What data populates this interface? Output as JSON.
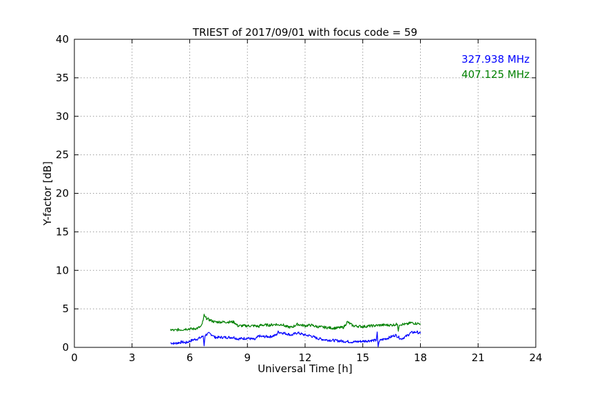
{
  "chart_data": {
    "type": "line",
    "title": "TRIEST of 2017/09/01 with focus code = 59",
    "xlabel": "Universal Time [h]",
    "ylabel": "Y-factor [dB]",
    "xlim": [
      0,
      24
    ],
    "ylim": [
      0,
      40
    ],
    "xticks": [
      0,
      3,
      6,
      9,
      12,
      15,
      18,
      21,
      24
    ],
    "yticks": [
      0,
      5,
      10,
      15,
      20,
      25,
      30,
      35,
      40
    ],
    "grid": true,
    "legend_position": "top-right",
    "series": [
      {
        "name": "327.938 MHz",
        "color": "#0000ff",
        "x": [
          5.0,
          5.2,
          5.4,
          5.6,
          5.8,
          6.0,
          6.2,
          6.4,
          6.6,
          6.7,
          6.75,
          6.8,
          7.0,
          7.2,
          7.3,
          8.3,
          8.5,
          9.0,
          9.4,
          9.6,
          9.7,
          10.2,
          10.5,
          10.6,
          10.8,
          11.0,
          11.3,
          11.6,
          12.0,
          12.3,
          12.6,
          13.0,
          13.5,
          14.0,
          14.5,
          15.0,
          15.5,
          15.7,
          15.75,
          15.8,
          15.85,
          16.0,
          16.3,
          16.5,
          16.7,
          17.0,
          17.3,
          17.5,
          17.8,
          18.0
        ],
        "y": [
          0.6,
          0.5,
          0.6,
          0.7,
          0.6,
          0.8,
          1.0,
          1.1,
          1.3,
          1.5,
          0.2,
          1.6,
          1.8,
          1.6,
          1.3,
          1.3,
          1.1,
          1.2,
          1.0,
          1.5,
          1.4,
          1.4,
          1.6,
          2.0,
          1.9,
          1.8,
          1.6,
          1.9,
          1.6,
          1.5,
          1.2,
          1.0,
          0.9,
          0.8,
          0.7,
          0.8,
          0.9,
          0.9,
          2.0,
          0.1,
          0.8,
          1.0,
          1.2,
          1.4,
          1.6,
          1.1,
          1.5,
          1.9,
          2.0,
          1.8
        ]
      },
      {
        "name": "407.125 MHz",
        "color": "#008000",
        "x": [
          5.0,
          5.2,
          5.4,
          5.6,
          5.8,
          6.0,
          6.2,
          6.4,
          6.6,
          6.7,
          6.75,
          6.8,
          7.0,
          7.2,
          7.3,
          8.3,
          8.5,
          9.0,
          9.4,
          9.6,
          9.7,
          10.2,
          10.5,
          10.6,
          10.8,
          11.0,
          11.3,
          11.6,
          12.0,
          12.3,
          12.6,
          13.0,
          13.5,
          14.0,
          14.2,
          14.5,
          15.0,
          15.5,
          16.0,
          16.5,
          16.8,
          16.85,
          16.9,
          17.0,
          17.3,
          17.5,
          17.8,
          18.0
        ],
        "y": [
          2.3,
          2.2,
          2.3,
          2.3,
          2.4,
          2.4,
          2.4,
          2.5,
          2.7,
          3.5,
          4.3,
          3.9,
          3.6,
          3.4,
          3.3,
          3.3,
          2.8,
          2.8,
          2.8,
          2.7,
          2.9,
          2.9,
          3.0,
          2.9,
          3.0,
          2.7,
          2.6,
          3.0,
          2.8,
          2.9,
          2.7,
          2.6,
          2.5,
          2.6,
          3.3,
          2.8,
          2.7,
          2.8,
          2.9,
          2.9,
          3.0,
          2.1,
          3.0,
          3.0,
          3.0,
          3.2,
          3.1,
          3.1
        ]
      }
    ]
  }
}
